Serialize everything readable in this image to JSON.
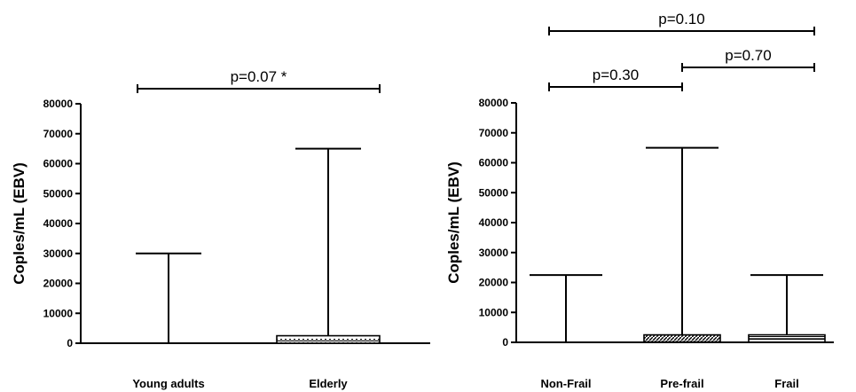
{
  "chart_data": [
    {
      "type": "box",
      "ylabel": "Coples/mL (EBV)",
      "ylim": [
        0,
        80000
      ],
      "yticks": [
        0,
        10000,
        20000,
        30000,
        40000,
        50000,
        60000,
        70000,
        80000
      ],
      "categories": [
        "Young adults",
        "Elderly"
      ],
      "boxes": [
        {
          "category": "Young adults",
          "min": 0,
          "q1": 0,
          "median": 0,
          "q3": 0,
          "max": 30000,
          "fill": "none"
        },
        {
          "category": "Elderly",
          "min": 0,
          "q1": 0,
          "median": 800,
          "q3": 2500,
          "max": 65000,
          "fill": "dots"
        }
      ],
      "comparisons": [
        {
          "from": "Young adults",
          "to": "Elderly",
          "label": "p=0.07 *"
        }
      ]
    },
    {
      "type": "box",
      "ylabel": "Coples/mL (EBV)",
      "ylim": [
        0,
        80000
      ],
      "yticks": [
        0,
        10000,
        20000,
        30000,
        40000,
        50000,
        60000,
        70000,
        80000
      ],
      "categories": [
        "Non-Frail",
        "Pre-frail",
        "Frail"
      ],
      "boxes": [
        {
          "category": "Non-Frail",
          "min": 0,
          "q1": 0,
          "median": 0,
          "q3": 0,
          "max": 22500,
          "fill": "none"
        },
        {
          "category": "Pre-frail",
          "min": 0,
          "q1": 0,
          "median": 200,
          "q3": 2500,
          "max": 65000,
          "fill": "diagonal"
        },
        {
          "category": "Frail",
          "min": 0,
          "q1": 0,
          "median": 1200,
          "q3": 2500,
          "max": 22500,
          "fill": "horizontal"
        }
      ],
      "comparisons": [
        {
          "from": "Non-Frail",
          "to": "Frail",
          "label": "p=0.10"
        },
        {
          "from": "Non-Frail",
          "to": "Pre-frail",
          "label": "p=0.30"
        },
        {
          "from": "Pre-frail",
          "to": "Frail",
          "label": "p=0.70"
        }
      ]
    }
  ]
}
